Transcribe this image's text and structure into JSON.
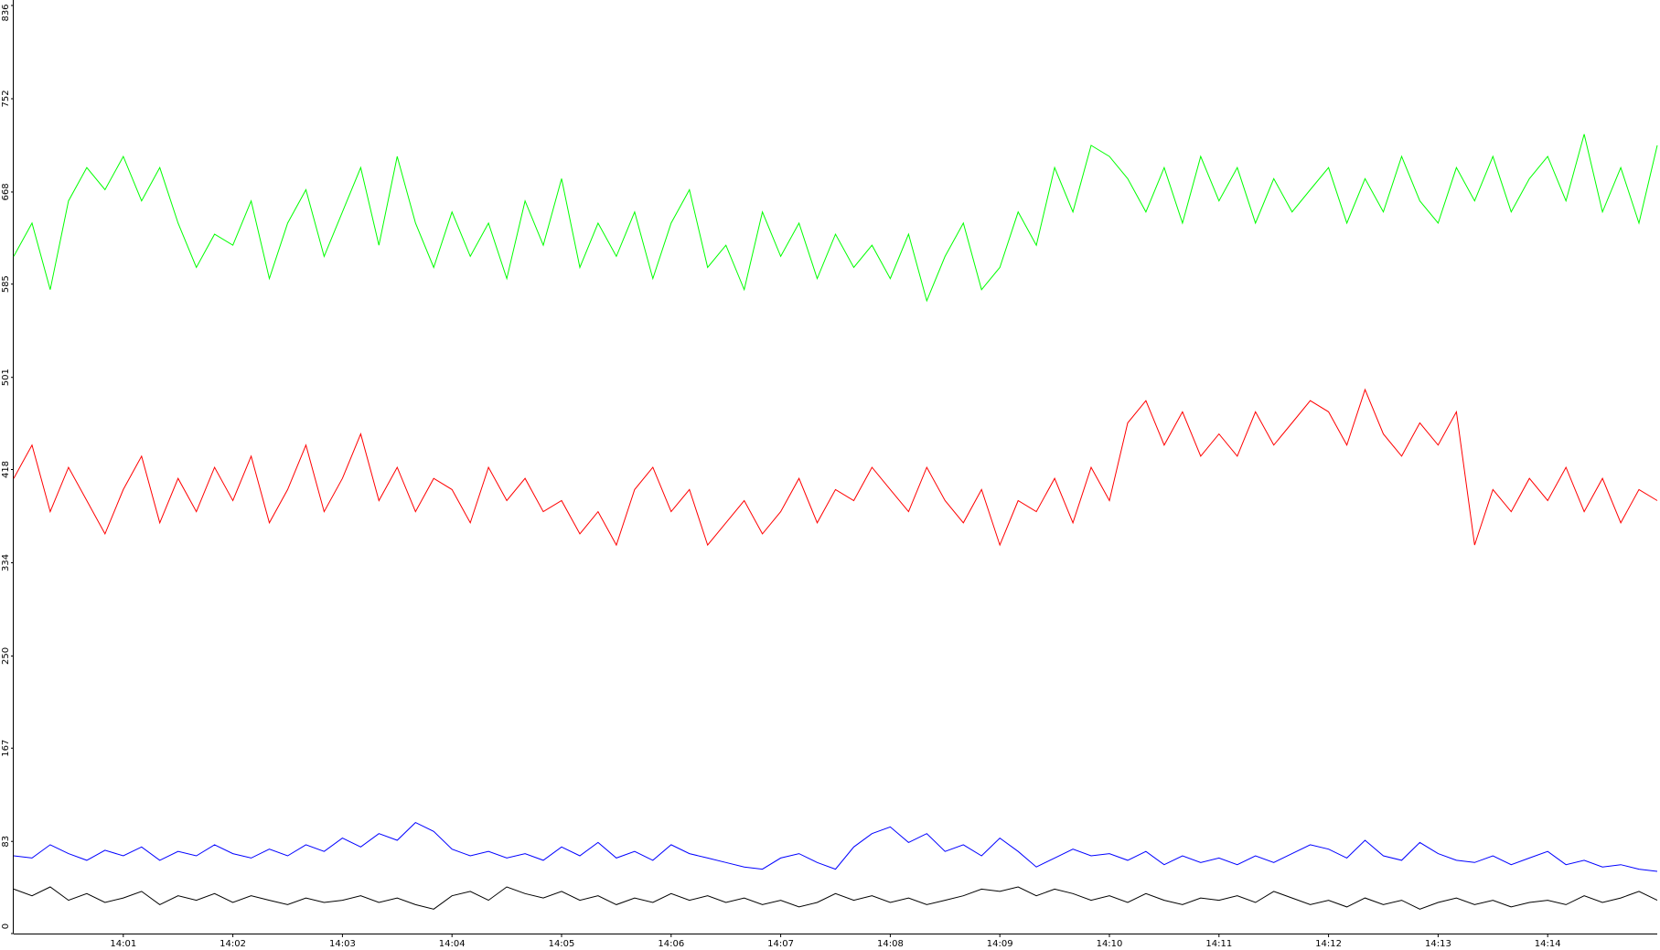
{
  "chart_data": {
    "type": "line",
    "categories": [
      null,
      null,
      null,
      null,
      null,
      null,
      "14:01",
      null,
      null,
      null,
      null,
      null,
      "14:02",
      null,
      null,
      null,
      null,
      null,
      "14:03",
      null,
      null,
      null,
      null,
      null,
      "14:04",
      null,
      null,
      null,
      null,
      null,
      "14:05",
      null,
      null,
      null,
      null,
      null,
      "14:06",
      null,
      null,
      null,
      null,
      null,
      "14:07",
      null,
      null,
      null,
      null,
      null,
      "14:08",
      null,
      null,
      null,
      null,
      null,
      "14:09",
      null,
      null,
      null,
      null,
      null,
      "14:10",
      null,
      null,
      null,
      null,
      null,
      "14:11",
      null,
      null,
      null,
      null,
      null,
      "14:12",
      null,
      null,
      null,
      null,
      null,
      "14:13",
      null,
      null,
      null,
      null,
      null,
      "14:14",
      null,
      null,
      null,
      null,
      null,
      null
    ],
    "series": [
      {
        "color": "#00ff00",
        "values": [
          610,
          640,
          580,
          660,
          690,
          670,
          700,
          660,
          690,
          640,
          600,
          630,
          620,
          660,
          590,
          640,
          670,
          610,
          650,
          690,
          620,
          700,
          640,
          600,
          650,
          610,
          640,
          590,
          660,
          620,
          680,
          600,
          640,
          610,
          650,
          590,
          640,
          670,
          600,
          620,
          580,
          650,
          610,
          640,
          590,
          630,
          600,
          620,
          590,
          630,
          570,
          610,
          640,
          580,
          600,
          650,
          620,
          690,
          650,
          710,
          700,
          680,
          650,
          690,
          640,
          700,
          660,
          690,
          640,
          680,
          650,
          670,
          690,
          640,
          680,
          650,
          700,
          660,
          640,
          690,
          660,
          700,
          650,
          680,
          700,
          660,
          720,
          650,
          690,
          640,
          710
        ]
      },
      {
        "color": "#ff0000",
        "values": [
          410,
          440,
          380,
          420,
          390,
          360,
          400,
          430,
          370,
          410,
          380,
          420,
          390,
          430,
          370,
          400,
          440,
          380,
          410,
          450,
          390,
          420,
          380,
          410,
          400,
          370,
          420,
          390,
          410,
          380,
          390,
          360,
          380,
          350,
          400,
          420,
          380,
          400,
          350,
          370,
          390,
          360,
          380,
          410,
          370,
          400,
          390,
          420,
          400,
          380,
          420,
          390,
          370,
          400,
          350,
          390,
          380,
          410,
          370,
          420,
          390,
          460,
          480,
          440,
          470,
          430,
          450,
          430,
          470,
          440,
          460,
          480,
          470,
          440,
          490,
          450,
          430,
          460,
          440,
          470,
          350,
          400,
          380,
          410,
          390,
          420,
          380,
          410,
          370,
          400,
          390
        ]
      },
      {
        "color": "#0000ff",
        "values": [
          70,
          68,
          80,
          72,
          66,
          75,
          70,
          78,
          66,
          74,
          70,
          80,
          72,
          68,
          76,
          70,
          80,
          74,
          86,
          78,
          90,
          84,
          100,
          92,
          76,
          70,
          74,
          68,
          72,
          66,
          78,
          70,
          82,
          68,
          74,
          66,
          80,
          72,
          68,
          64,
          60,
          58,
          68,
          72,
          64,
          58,
          78,
          90,
          96,
          82,
          90,
          74,
          80,
          70,
          86,
          74,
          60,
          68,
          76,
          70,
          72,
          66,
          74,
          62,
          70,
          64,
          68,
          62,
          70,
          64,
          72,
          80,
          76,
          68,
          84,
          70,
          66,
          82,
          72,
          66,
          64,
          70,
          62,
          68,
          74,
          62,
          66,
          60,
          62,
          58,
          56
        ]
      },
      {
        "color": "#000000",
        "values": [
          40,
          34,
          42,
          30,
          36,
          28,
          32,
          38,
          26,
          34,
          30,
          36,
          28,
          34,
          30,
          26,
          32,
          28,
          30,
          34,
          28,
          32,
          26,
          22,
          34,
          38,
          30,
          42,
          36,
          32,
          38,
          30,
          34,
          26,
          32,
          28,
          36,
          30,
          34,
          28,
          32,
          26,
          30,
          24,
          28,
          36,
          30,
          34,
          28,
          32,
          26,
          30,
          34,
          40,
          38,
          42,
          34,
          40,
          36,
          30,
          34,
          28,
          36,
          30,
          26,
          32,
          30,
          34,
          28,
          38,
          32,
          26,
          30,
          24,
          32,
          26,
          30,
          22,
          28,
          32,
          26,
          30,
          24,
          28,
          30,
          26,
          34,
          28,
          32,
          38,
          30
        ]
      }
    ],
    "ylim": [
      0,
      836
    ],
    "yticks": [
      0,
      83,
      167,
      250,
      334,
      418,
      501,
      585,
      668,
      752,
      836
    ]
  }
}
